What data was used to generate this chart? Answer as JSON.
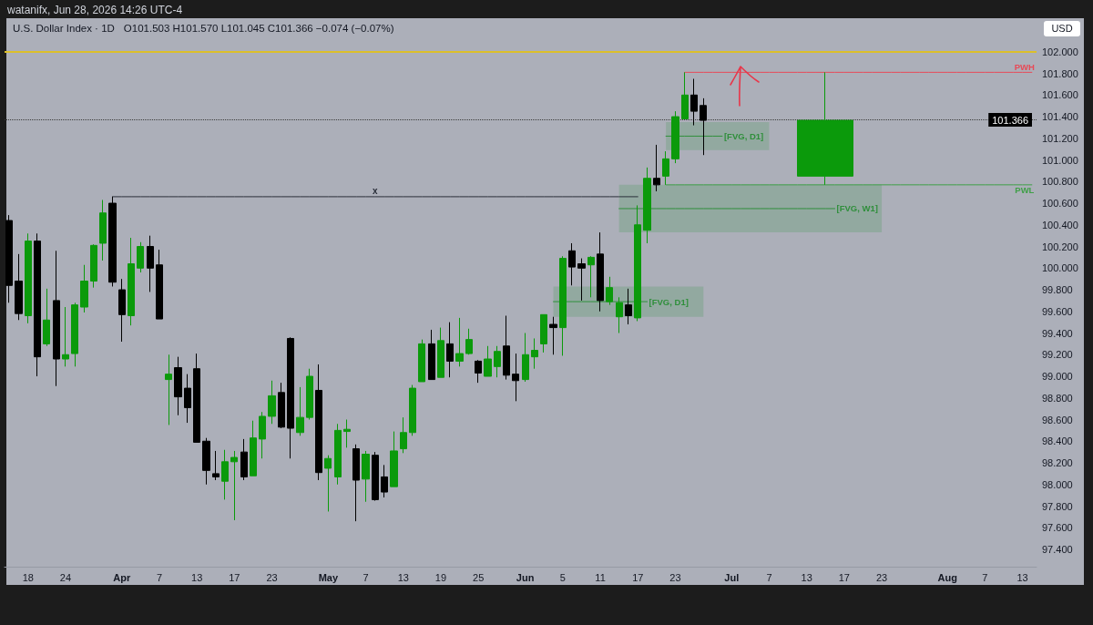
{
  "chart_data": {
    "type": "candlestick",
    "title": "U.S. Dollar Index · 1D",
    "subtitle": "O101.503  H101.570  L101.045  C101.366  −0.074 (−0.07%)",
    "annotations": [
      "watanifx, Jun 28, 2026 14:26 UTC-4"
    ],
    "ylabel": "USD",
    "categories": [
      null,
      null,
      "18",
      null,
      null,
      null,
      "24",
      null,
      null,
      null,
      null,
      null,
      "Apr",
      null,
      null,
      null,
      "7",
      null,
      null,
      null,
      "13",
      null,
      null,
      null,
      "17",
      null,
      null,
      null,
      "23",
      null,
      null,
      null,
      null,
      null,
      "May",
      null,
      null,
      null,
      "7",
      null,
      null,
      null,
      "13",
      null,
      null,
      null,
      "19",
      null,
      null,
      null,
      "25",
      null,
      null,
      null,
      null,
      "Jun",
      null,
      null,
      null,
      "5",
      null,
      null,
      null,
      "11",
      null,
      null,
      null,
      "17",
      null,
      null,
      null,
      "23",
      null,
      null,
      null,
      null,
      null,
      "Jul",
      null,
      null,
      null,
      "7",
      null,
      null,
      null,
      "13",
      null,
      null,
      null,
      "17",
      null,
      null,
      null,
      "23",
      null,
      null,
      null,
      null,
      null,
      null,
      "Aug",
      null,
      null,
      null,
      "7",
      null,
      null,
      null,
      "13",
      null
    ],
    "ylim": [
      97.24,
      102.31
    ],
    "yticks": [
      {
        "value": 97.4,
        "label": "97.400"
      },
      {
        "value": 97.6,
        "label": "97.600"
      },
      {
        "value": 97.8,
        "label": "97.800"
      },
      {
        "value": 98.0,
        "label": "98.000"
      },
      {
        "value": 98.2,
        "label": "98.200"
      },
      {
        "value": 98.4,
        "label": "98.400"
      },
      {
        "value": 98.6,
        "label": "98.600"
      },
      {
        "value": 98.8,
        "label": "98.800"
      },
      {
        "value": 99.0,
        "label": "99.000"
      },
      {
        "value": 99.2,
        "label": "99.200"
      },
      {
        "value": 99.4,
        "label": "99.400"
      },
      {
        "value": 99.6,
        "label": "99.600"
      },
      {
        "value": 99.8,
        "label": "99.800"
      },
      {
        "value": 100.0,
        "label": "100.000"
      },
      {
        "value": 100.2,
        "label": "100.200"
      },
      {
        "value": 100.4,
        "label": "100.400"
      },
      {
        "value": 100.6,
        "label": "100.600"
      },
      {
        "value": 100.8,
        "label": "100.800"
      },
      {
        "value": 101.0,
        "label": "101.000"
      },
      {
        "value": 101.2,
        "label": "101.200"
      },
      {
        "value": 101.4,
        "label": "101.400"
      },
      {
        "value": 101.6,
        "label": "101.600"
      },
      {
        "value": 101.8,
        "label": "101.800"
      },
      {
        "value": 102.0,
        "label": "102.000"
      }
    ],
    "ref_lines": [
      {
        "axis": "y",
        "value": 102.0,
        "color": "#dcbf2a"
      },
      {
        "axis": "y",
        "value": 101.366,
        "label": "101.366",
        "color": "#3b3b3b",
        "line_style": "dotted"
      }
    ],
    "series": [
      {
        "ohlc": [
          [
            100.44,
            100.49,
            99.68,
            99.84
          ],
          [
            99.88,
            100.13,
            99.52,
            99.58
          ],
          [
            99.56,
            100.32,
            99.49,
            100.25
          ],
          [
            100.25,
            100.32,
            99.0,
            99.18
          ],
          [
            99.3,
            99.81,
            99.28,
            99.52
          ],
          [
            99.7,
            100.16,
            98.91,
            99.16
          ],
          [
            99.16,
            99.64,
            99.09,
            99.2
          ],
          [
            99.21,
            99.68,
            99.09,
            99.66
          ],
          [
            99.64,
            100.03,
            99.59,
            99.88
          ],
          [
            99.88,
            100.22,
            99.82,
            100.21
          ],
          [
            100.23,
            100.63,
            100.07,
            100.51
          ],
          [
            100.6,
            100.66,
            99.83,
            99.87
          ],
          [
            99.8,
            99.9,
            99.32,
            99.57
          ],
          [
            99.56,
            100.28,
            99.47,
            100.04
          ],
          [
            100.0,
            100.24,
            99.96,
            100.2
          ],
          [
            100.2,
            100.3,
            99.78,
            100.0
          ],
          [
            100.03,
            100.17,
            99.53,
            99.53
          ],
          [
            98.97,
            99.2,
            98.55,
            99.02
          ],
          [
            99.08,
            99.18,
            98.64,
            98.81
          ],
          [
            98.89,
            99.02,
            98.57,
            98.71
          ],
          [
            99.07,
            99.21,
            98.39,
            98.39
          ],
          [
            98.4,
            98.43,
            98.0,
            98.13
          ],
          [
            98.1,
            98.31,
            98.04,
            98.07
          ],
          [
            98.03,
            98.32,
            97.86,
            98.21
          ],
          [
            98.21,
            98.31,
            97.67,
            98.25
          ],
          [
            98.3,
            98.42,
            98.04,
            98.07
          ],
          [
            98.08,
            98.59,
            98.08,
            98.43
          ],
          [
            98.42,
            98.67,
            98.24,
            98.63
          ],
          [
            98.63,
            98.96,
            98.56,
            98.82
          ],
          [
            98.85,
            98.94,
            98.52,
            98.53
          ],
          [
            99.35,
            99.36,
            98.24,
            98.52
          ],
          [
            98.48,
            98.9,
            98.45,
            98.62
          ],
          [
            98.62,
            99.07,
            98.6,
            99.0
          ],
          [
            98.87,
            99.11,
            98.04,
            98.11
          ],
          [
            98.15,
            98.27,
            97.75,
            98.24
          ],
          [
            98.07,
            98.56,
            98.0,
            98.5
          ],
          [
            98.49,
            98.6,
            98.34,
            98.51
          ],
          [
            98.33,
            98.37,
            97.66,
            98.04
          ],
          [
            98.05,
            98.31,
            97.84,
            98.28
          ],
          [
            98.27,
            98.3,
            97.85,
            97.86
          ],
          [
            98.07,
            98.18,
            97.88,
            97.93
          ],
          [
            97.98,
            98.49,
            97.98,
            98.31
          ],
          [
            98.33,
            98.62,
            98.29,
            98.48
          ],
          [
            98.48,
            98.92,
            98.45,
            98.89
          ],
          [
            98.95,
            99.34,
            98.95,
            99.3
          ],
          [
            99.3,
            99.43,
            98.97,
            98.97
          ],
          [
            98.99,
            99.45,
            98.99,
            99.33
          ],
          [
            99.3,
            99.5,
            98.99,
            99.14
          ],
          [
            99.14,
            99.54,
            99.09,
            99.21
          ],
          [
            99.21,
            99.44,
            99.2,
            99.34
          ],
          [
            99.14,
            99.15,
            98.94,
            99.03
          ],
          [
            99.0,
            99.28,
            99.0,
            99.16
          ],
          [
            99.09,
            99.28,
            98.99,
            99.23
          ],
          [
            99.28,
            99.56,
            98.97,
            99.01
          ],
          [
            99.02,
            99.21,
            98.77,
            98.96
          ],
          [
            98.97,
            99.4,
            98.95,
            99.2
          ],
          [
            99.18,
            99.35,
            99.07,
            99.24
          ],
          [
            99.3,
            99.57,
            99.22,
            99.57
          ],
          [
            99.48,
            99.55,
            99.2,
            99.45
          ],
          [
            99.45,
            100.11,
            99.19,
            100.09
          ],
          [
            100.16,
            100.23,
            99.84,
            100.01
          ],
          [
            100.04,
            100.09,
            99.7,
            100.0
          ],
          [
            100.03,
            100.11,
            99.73,
            100.1
          ],
          [
            100.13,
            100.33,
            99.6,
            99.7
          ],
          [
            99.69,
            99.92,
            99.66,
            99.82
          ],
          [
            99.55,
            99.73,
            99.4,
            99.68
          ],
          [
            99.66,
            99.81,
            99.48,
            99.56
          ],
          [
            99.54,
            100.58,
            99.51,
            100.4
          ],
          [
            100.35,
            100.93,
            100.23,
            100.83
          ],
          [
            100.83,
            101.14,
            100.71,
            100.77
          ],
          [
            100.85,
            101.08,
            100.77,
            101.01
          ],
          [
            101.01,
            101.45,
            100.97,
            101.4
          ],
          [
            101.38,
            101.81,
            101.38,
            101.6
          ],
          [
            101.6,
            101.75,
            101.32,
            101.45
          ],
          [
            101.503,
            101.57,
            101.045,
            101.366
          ],
          null,
          null,
          null,
          null,
          null,
          null,
          null,
          null,
          null,
          null,
          null,
          null,
          null,
          null,
          null,
          null,
          null,
          null,
          null,
          null,
          null,
          null,
          null,
          null,
          null,
          null,
          null,
          null,
          null,
          null,
          null,
          null,
          null,
          null,
          null
        ]
      },
      {
        "ohlc": [
          null,
          null,
          null,
          null,
          null,
          null,
          null,
          null,
          null,
          null,
          null,
          null,
          null,
          null,
          null,
          null,
          null,
          null,
          null,
          null,
          null,
          null,
          null,
          null,
          null,
          null,
          null,
          null,
          null,
          null,
          null,
          null,
          null,
          null,
          null,
          null,
          null,
          null,
          null,
          null,
          null,
          null,
          null,
          null,
          null,
          null,
          null,
          null,
          null,
          null,
          null,
          null,
          null,
          null,
          null,
          null,
          null,
          null,
          null,
          null,
          null,
          null,
          null,
          null,
          null,
          null,
          null,
          null,
          null,
          null,
          null,
          null,
          null,
          null,
          null,
          null,
          null,
          null,
          null,
          null,
          null,
          null,
          null,
          null,
          null,
          null,
          null,
          [
            100.85,
            101.81,
            100.77,
            101.366
          ],
          null,
          null,
          null,
          null,
          null,
          null,
          null,
          null,
          null,
          null,
          null,
          null,
          null,
          null,
          null,
          null,
          null,
          null,
          null,
          null,
          null,
          null
        ]
      },
      {
        "type": "line",
        "name": "x",
        "color": "#2a2e39",
        "values": [
          null,
          null,
          null,
          null,
          null,
          null,
          null,
          null,
          null,
          null,
          null,
          100.66,
          100.66,
          100.66,
          100.66,
          100.66,
          100.66,
          100.66,
          100.66,
          100.66,
          100.66,
          100.66,
          100.66,
          100.66,
          100.66,
          100.66,
          100.66,
          100.66,
          100.66,
          100.66,
          100.66,
          100.66,
          100.66,
          100.66,
          100.66,
          100.66,
          100.66,
          100.66,
          100.66,
          100.66,
          100.66,
          100.66,
          100.66,
          100.66,
          100.66,
          100.66,
          100.66,
          100.66,
          100.66,
          100.66,
          100.66,
          100.66,
          100.66,
          100.66,
          100.66,
          100.66,
          100.66,
          100.66,
          100.66,
          100.66,
          100.66,
          100.66,
          100.66,
          100.66,
          100.66,
          100.66,
          100.66,
          100.66,
          null,
          null,
          null,
          null,
          null,
          null,
          null,
          null,
          null,
          null,
          null,
          null,
          null,
          null,
          null,
          null,
          null,
          null,
          null,
          null,
          null,
          null,
          null,
          null,
          null,
          null,
          null,
          null,
          null,
          null,
          null,
          null,
          null,
          null,
          null,
          null,
          null,
          null,
          null,
          null,
          null,
          null
        ]
      },
      {
        "type": "line",
        "name": "PWH",
        "color": "#e84a57",
        "values": [
          null,
          null,
          null,
          null,
          null,
          null,
          null,
          null,
          null,
          null,
          null,
          null,
          null,
          null,
          null,
          null,
          null,
          null,
          null,
          null,
          null,
          null,
          null,
          null,
          null,
          null,
          null,
          null,
          null,
          null,
          null,
          null,
          null,
          null,
          null,
          null,
          null,
          null,
          null,
          null,
          null,
          null,
          null,
          null,
          null,
          null,
          null,
          null,
          null,
          null,
          null,
          null,
          null,
          null,
          null,
          null,
          null,
          null,
          null,
          null,
          null,
          null,
          null,
          null,
          null,
          null,
          null,
          null,
          null,
          null,
          null,
          null,
          101.81,
          101.81,
          101.81,
          101.81,
          101.81,
          101.81,
          101.81,
          101.81,
          101.81,
          101.81,
          101.81,
          101.81,
          101.81,
          101.81,
          101.81,
          101.81,
          101.81,
          101.81,
          101.81,
          101.81,
          101.81,
          101.81,
          101.81,
          101.81,
          101.81,
          101.81,
          101.81,
          101.81,
          101.81,
          101.81,
          101.81,
          101.81,
          101.81,
          101.81,
          101.81,
          101.81,
          101.81,
          101.81
        ]
      },
      {
        "type": "line",
        "name": "PWL",
        "color": "#3f9f47",
        "values": [
          null,
          null,
          null,
          null,
          null,
          null,
          null,
          null,
          null,
          null,
          null,
          null,
          null,
          null,
          null,
          null,
          null,
          null,
          null,
          null,
          null,
          null,
          null,
          null,
          null,
          null,
          null,
          null,
          null,
          null,
          null,
          null,
          null,
          null,
          null,
          null,
          null,
          null,
          null,
          null,
          null,
          null,
          null,
          null,
          null,
          null,
          null,
          null,
          null,
          null,
          null,
          null,
          null,
          null,
          null,
          null,
          null,
          null,
          null,
          null,
          null,
          null,
          null,
          null,
          null,
          null,
          null,
          null,
          null,
          null,
          100.77,
          100.77,
          100.77,
          100.77,
          100.77,
          100.77,
          100.77,
          100.77,
          100.77,
          100.77,
          100.77,
          100.77,
          100.77,
          100.77,
          100.77,
          100.77,
          100.77,
          100.77,
          100.77,
          100.77,
          100.77,
          100.77,
          100.77,
          100.77,
          100.77,
          100.77,
          100.77,
          100.77,
          100.77,
          100.77,
          100.77,
          100.77,
          100.77,
          100.77,
          100.77,
          100.77,
          100.77,
          100.77,
          100.77,
          100.77
        ]
      },
      {
        "type": "line",
        "name": "[FVG, D1]",
        "color": "#2f8f3b",
        "values": [
          null,
          null,
          null,
          null,
          null,
          null,
          null,
          null,
          null,
          null,
          null,
          null,
          null,
          null,
          null,
          null,
          null,
          null,
          null,
          null,
          null,
          null,
          null,
          null,
          null,
          null,
          null,
          null,
          null,
          null,
          null,
          null,
          null,
          null,
          null,
          null,
          null,
          null,
          null,
          null,
          null,
          null,
          null,
          null,
          null,
          null,
          null,
          null,
          null,
          null,
          null,
          null,
          null,
          null,
          null,
          null,
          null,
          null,
          99.69,
          99.69,
          99.69,
          99.69,
          99.69,
          99.69,
          99.69,
          99.69,
          99.69,
          99.69,
          99.69,
          null,
          null,
          null,
          null,
          null,
          null,
          null,
          null,
          null,
          null,
          null,
          null,
          null,
          null,
          null,
          null,
          null,
          null,
          null,
          null,
          null,
          null,
          null,
          null,
          null,
          null,
          null,
          null,
          null,
          null,
          null,
          null,
          null,
          null,
          null,
          null,
          null,
          null,
          null,
          null,
          null
        ],
        "lower": [
          null,
          null,
          null,
          null,
          null,
          null,
          null,
          null,
          null,
          null,
          null,
          null,
          null,
          null,
          null,
          null,
          null,
          null,
          null,
          null,
          null,
          null,
          null,
          null,
          null,
          null,
          null,
          null,
          null,
          null,
          null,
          null,
          null,
          null,
          null,
          null,
          null,
          null,
          null,
          null,
          null,
          null,
          null,
          null,
          null,
          null,
          null,
          null,
          null,
          null,
          null,
          null,
          null,
          null,
          null,
          null,
          null,
          null,
          99.55,
          99.55,
          99.55,
          99.55,
          99.55,
          99.55,
          99.55,
          99.55,
          99.55,
          99.55,
          99.55,
          99.55,
          99.55,
          99.55,
          99.55,
          99.55,
          99.55,
          null,
          null,
          null,
          null,
          null,
          null,
          null,
          null,
          null,
          null,
          null,
          null,
          null,
          null,
          null,
          null,
          null,
          null,
          null,
          null,
          null,
          null,
          null,
          null,
          null,
          null,
          null,
          null,
          null,
          null,
          null,
          null,
          null,
          null,
          null
        ],
        "upper": [
          null,
          null,
          null,
          null,
          null,
          null,
          null,
          null,
          null,
          null,
          null,
          null,
          null,
          null,
          null,
          null,
          null,
          null,
          null,
          null,
          null,
          null,
          null,
          null,
          null,
          null,
          null,
          null,
          null,
          null,
          null,
          null,
          null,
          null,
          null,
          null,
          null,
          null,
          null,
          null,
          null,
          null,
          null,
          null,
          null,
          null,
          null,
          null,
          null,
          null,
          null,
          null,
          null,
          null,
          null,
          null,
          null,
          null,
          99.83,
          99.83,
          99.83,
          99.83,
          99.83,
          99.83,
          99.83,
          99.83,
          99.83,
          99.83,
          99.83,
          99.83,
          99.83,
          99.83,
          99.83,
          99.83,
          99.83,
          null,
          null,
          null,
          null,
          null,
          null,
          null,
          null,
          null,
          null,
          null,
          null,
          null,
          null,
          null,
          null,
          null,
          null,
          null,
          null,
          null,
          null,
          null,
          null,
          null,
          null,
          null,
          null,
          null,
          null,
          null,
          null,
          null,
          null,
          null
        ]
      },
      {
        "type": "line",
        "name": "[FVG, W1]",
        "color": "#2f8f3b",
        "values": [
          null,
          null,
          null,
          null,
          null,
          null,
          null,
          null,
          null,
          null,
          null,
          null,
          null,
          null,
          null,
          null,
          null,
          null,
          null,
          null,
          null,
          null,
          null,
          null,
          null,
          null,
          null,
          null,
          null,
          null,
          null,
          null,
          null,
          null,
          null,
          null,
          null,
          null,
          null,
          null,
          null,
          null,
          null,
          null,
          null,
          null,
          null,
          null,
          null,
          null,
          null,
          null,
          null,
          null,
          null,
          null,
          null,
          null,
          null,
          null,
          null,
          null,
          null,
          null,
          null,
          100.55,
          100.55,
          100.55,
          100.55,
          100.55,
          100.55,
          100.55,
          100.55,
          100.55,
          100.55,
          100.55,
          100.55,
          100.55,
          100.55,
          100.55,
          100.55,
          100.55,
          100.55,
          100.55,
          100.55,
          100.55,
          100.55,
          100.55,
          100.55,
          null,
          null,
          null,
          null,
          null,
          null,
          null,
          null,
          null,
          null,
          null,
          null,
          null,
          null,
          null,
          null,
          null,
          null,
          null,
          null,
          null
        ],
        "lower": [
          null,
          null,
          null,
          null,
          null,
          null,
          null,
          null,
          null,
          null,
          null,
          null,
          null,
          null,
          null,
          null,
          null,
          null,
          null,
          null,
          null,
          null,
          null,
          null,
          null,
          null,
          null,
          null,
          null,
          null,
          null,
          null,
          null,
          null,
          null,
          null,
          null,
          null,
          null,
          null,
          null,
          null,
          null,
          null,
          null,
          null,
          null,
          null,
          null,
          null,
          null,
          null,
          null,
          null,
          null,
          null,
          null,
          null,
          null,
          null,
          null,
          null,
          null,
          null,
          null,
          100.33,
          100.33,
          100.33,
          100.33,
          100.33,
          100.33,
          100.33,
          100.33,
          100.33,
          100.33,
          100.33,
          100.33,
          100.33,
          100.33,
          100.33,
          100.33,
          100.33,
          100.33,
          100.33,
          100.33,
          100.33,
          100.33,
          100.33,
          100.33,
          100.33,
          100.33,
          100.33,
          100.33,
          100.33,
          null,
          null,
          null,
          null,
          null,
          null,
          null,
          null,
          null,
          null,
          null,
          null,
          null,
          null,
          null,
          null
        ],
        "upper": [
          null,
          null,
          null,
          null,
          null,
          null,
          null,
          null,
          null,
          null,
          null,
          null,
          null,
          null,
          null,
          null,
          null,
          null,
          null,
          null,
          null,
          null,
          null,
          null,
          null,
          null,
          null,
          null,
          null,
          null,
          null,
          null,
          null,
          null,
          null,
          null,
          null,
          null,
          null,
          null,
          null,
          null,
          null,
          null,
          null,
          null,
          null,
          null,
          null,
          null,
          null,
          null,
          null,
          null,
          null,
          null,
          null,
          null,
          null,
          null,
          null,
          null,
          null,
          null,
          null,
          100.77,
          100.77,
          100.77,
          100.77,
          100.77,
          100.77,
          100.77,
          100.77,
          100.77,
          100.77,
          100.77,
          100.77,
          100.77,
          100.77,
          100.77,
          100.77,
          100.77,
          100.77,
          100.77,
          100.77,
          100.77,
          100.77,
          100.77,
          100.77,
          100.77,
          100.77,
          100.77,
          100.77,
          100.77,
          null,
          null,
          null,
          null,
          null,
          null,
          null,
          null,
          null,
          null,
          null,
          null,
          null,
          null,
          null,
          null
        ]
      },
      {
        "type": "line",
        "name": "[FVG, D1]",
        "color": "#2f8f3b",
        "values": [
          null,
          null,
          null,
          null,
          null,
          null,
          null,
          null,
          null,
          null,
          null,
          null,
          null,
          null,
          null,
          null,
          null,
          null,
          null,
          null,
          null,
          null,
          null,
          null,
          null,
          null,
          null,
          null,
          null,
          null,
          null,
          null,
          null,
          null,
          null,
          null,
          null,
          null,
          null,
          null,
          null,
          null,
          null,
          null,
          null,
          null,
          null,
          null,
          null,
          null,
          null,
          null,
          null,
          null,
          null,
          null,
          null,
          null,
          null,
          null,
          null,
          null,
          null,
          null,
          null,
          null,
          null,
          null,
          null,
          null,
          101.22,
          101.22,
          101.22,
          101.22,
          101.22,
          101.22,
          101.22,
          null,
          null,
          null,
          null,
          null,
          null,
          null,
          null,
          null,
          null,
          null,
          null,
          null,
          null,
          null,
          null,
          null,
          null,
          null,
          null,
          null,
          null,
          null,
          null,
          null,
          null,
          null,
          null,
          null,
          null,
          null,
          null,
          null
        ],
        "lower": [
          null,
          null,
          null,
          null,
          null,
          null,
          null,
          null,
          null,
          null,
          null,
          null,
          null,
          null,
          null,
          null,
          null,
          null,
          null,
          null,
          null,
          null,
          null,
          null,
          null,
          null,
          null,
          null,
          null,
          null,
          null,
          null,
          null,
          null,
          null,
          null,
          null,
          null,
          null,
          null,
          null,
          null,
          null,
          null,
          null,
          null,
          null,
          null,
          null,
          null,
          null,
          null,
          null,
          null,
          null,
          null,
          null,
          null,
          null,
          null,
          null,
          null,
          null,
          null,
          null,
          null,
          null,
          null,
          null,
          null,
          101.09,
          101.09,
          101.09,
          101.09,
          101.09,
          101.09,
          101.09,
          101.09,
          101.09,
          101.09,
          101.09,
          101.09,
          null,
          null,
          null,
          null,
          null,
          null,
          null,
          null,
          null,
          null,
          null,
          null,
          null,
          null,
          null,
          null,
          null,
          null,
          null,
          null,
          null,
          null,
          null,
          null,
          null,
          null,
          null,
          null
        ],
        "upper": [
          null,
          null,
          null,
          null,
          null,
          null,
          null,
          null,
          null,
          null,
          null,
          null,
          null,
          null,
          null,
          null,
          null,
          null,
          null,
          null,
          null,
          null,
          null,
          null,
          null,
          null,
          null,
          null,
          null,
          null,
          null,
          null,
          null,
          null,
          null,
          null,
          null,
          null,
          null,
          null,
          null,
          null,
          null,
          null,
          null,
          null,
          null,
          null,
          null,
          null,
          null,
          null,
          null,
          null,
          null,
          null,
          null,
          null,
          null,
          null,
          null,
          null,
          null,
          null,
          null,
          null,
          null,
          null,
          null,
          null,
          101.35,
          101.35,
          101.35,
          101.35,
          101.35,
          101.35,
          101.35,
          101.35,
          101.35,
          101.35,
          101.35,
          101.35,
          null,
          null,
          null,
          null,
          null,
          null,
          null,
          null,
          null,
          null,
          null,
          null,
          null,
          null,
          null,
          null,
          null,
          null,
          null,
          null,
          null,
          null,
          null,
          null,
          null,
          null,
          null,
          null
        ]
      }
    ]
  }
}
